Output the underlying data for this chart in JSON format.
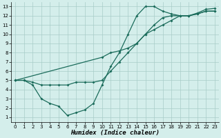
{
  "line1_x": [
    0,
    1,
    2,
    3,
    4,
    5,
    6,
    7,
    8,
    9,
    10,
    11,
    12,
    13,
    14,
    15,
    16,
    17,
    18,
    19,
    20,
    21,
    22,
    23
  ],
  "line1_y": [
    5,
    5,
    4.5,
    3.0,
    2.5,
    2.2,
    1.2,
    1.5,
    1.8,
    2.5,
    4.5,
    6.5,
    8.0,
    10.0,
    12.0,
    13.0,
    13.0,
    12.5,
    12.2,
    12.0,
    12.0,
    12.3,
    12.7,
    12.8
  ],
  "line2_x": [
    0,
    1,
    2,
    3,
    4,
    5,
    6,
    7,
    8,
    9,
    10,
    11,
    12,
    13,
    14,
    15,
    16,
    17,
    18,
    19,
    20,
    21,
    22,
    23
  ],
  "line2_y": [
    5.0,
    5.0,
    4.8,
    4.5,
    4.5,
    4.5,
    4.5,
    4.8,
    4.8,
    4.8,
    5.0,
    6.0,
    7.0,
    8.0,
    9.0,
    10.0,
    11.0,
    11.8,
    12.0,
    12.0,
    12.0,
    12.2,
    12.5,
    12.5
  ],
  "line3_x": [
    0,
    10,
    11,
    12,
    13,
    14,
    15,
    16,
    17,
    18,
    19,
    20,
    21,
    22,
    23
  ],
  "line3_y": [
    5.0,
    7.5,
    8.0,
    8.2,
    8.5,
    9.0,
    10.0,
    10.5,
    11.0,
    11.5,
    12.0,
    12.0,
    12.2,
    12.5,
    12.5
  ],
  "line_color": "#1a6b5a",
  "bg_color": "#d4eeeb",
  "grid_color": "#a8ccc8",
  "xlabel": "Humidex (Indice chaleur)",
  "xlim": [
    -0.5,
    23.5
  ],
  "ylim": [
    0.5,
    13.5
  ],
  "xticks": [
    0,
    1,
    2,
    3,
    4,
    5,
    6,
    7,
    8,
    9,
    10,
    11,
    12,
    13,
    14,
    15,
    16,
    17,
    18,
    19,
    20,
    21,
    22,
    23
  ],
  "yticks": [
    1,
    2,
    3,
    4,
    5,
    6,
    7,
    8,
    9,
    10,
    11,
    12,
    13
  ],
  "marker": "D",
  "markersize": 2.0,
  "linewidth": 0.9,
  "tick_fontsize": 5.0,
  "xlabel_fontsize": 6.5,
  "figwidth": 3.2,
  "figheight": 2.0,
  "dpi": 100
}
